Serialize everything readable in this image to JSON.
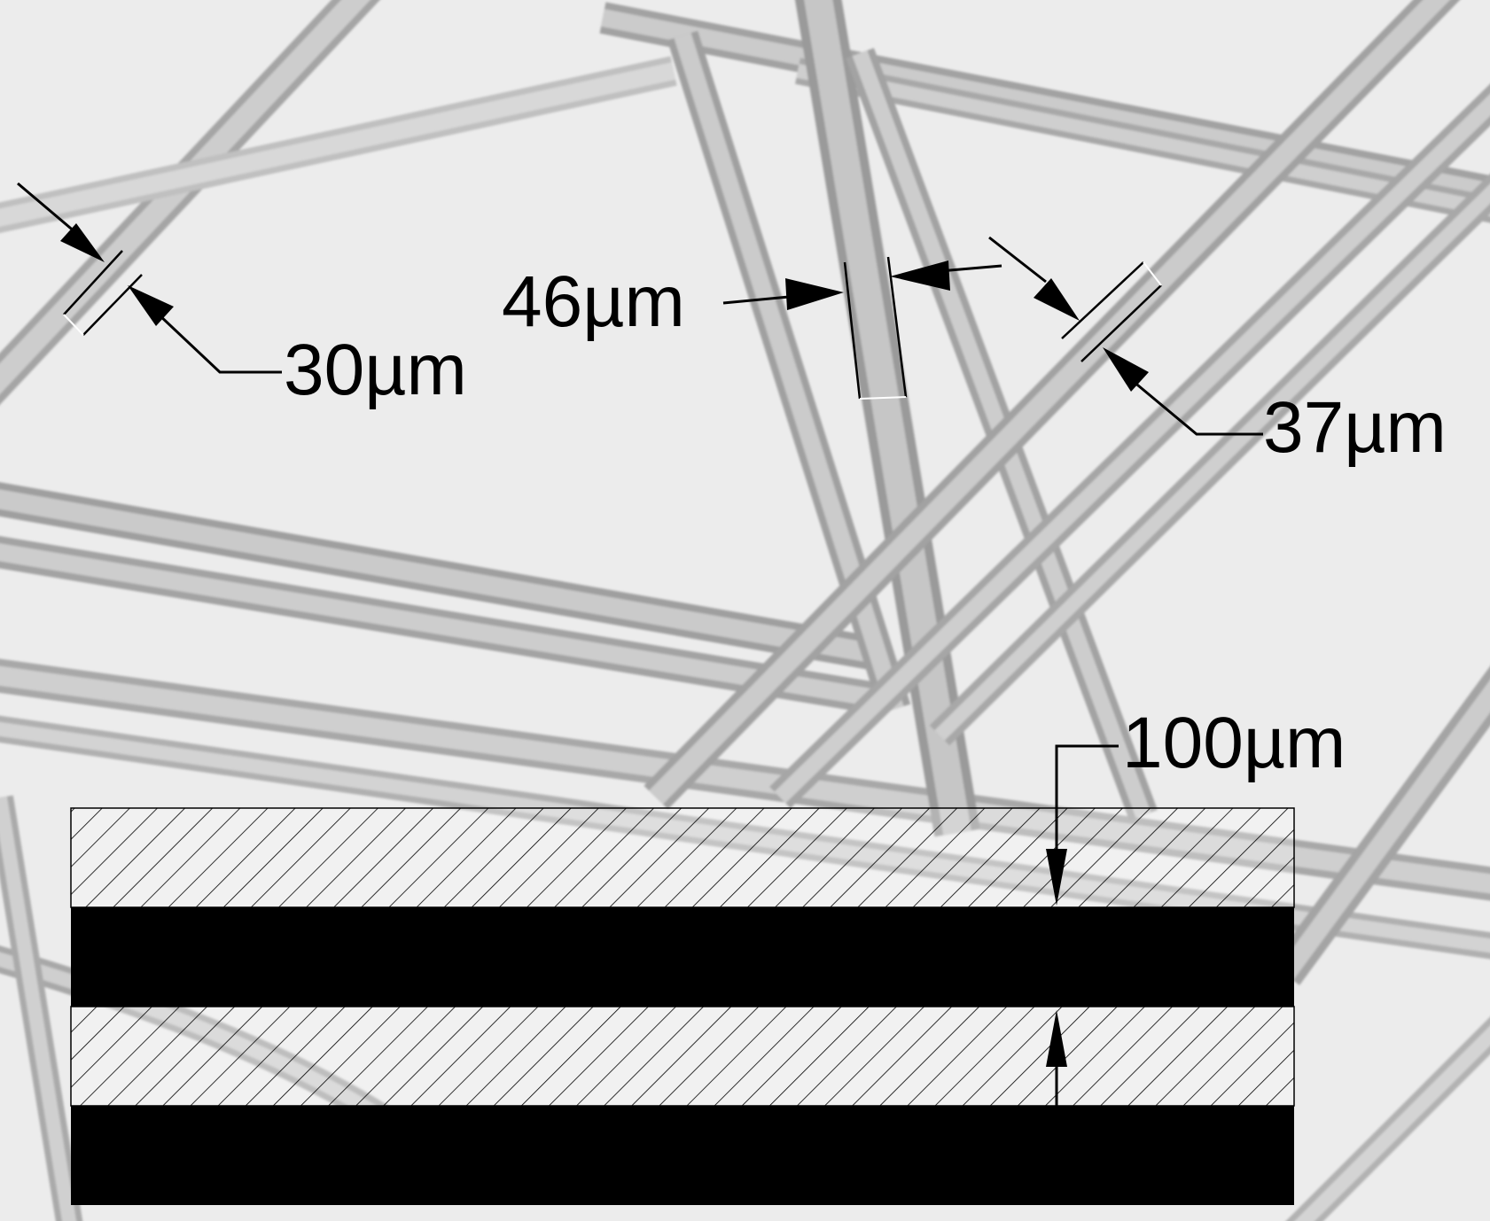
{
  "annotations": {
    "fiber_left": "30µm",
    "fiber_center": "46µm",
    "fiber_right": "37µm",
    "layer_spacing": "100µm"
  },
  "colors": {
    "background": "#ececec",
    "fiber_edge": "#9a9a9a",
    "fiber_core": "#c4c4c4",
    "hatch_fill": "#ffffff",
    "solid_layer": "#000000"
  }
}
